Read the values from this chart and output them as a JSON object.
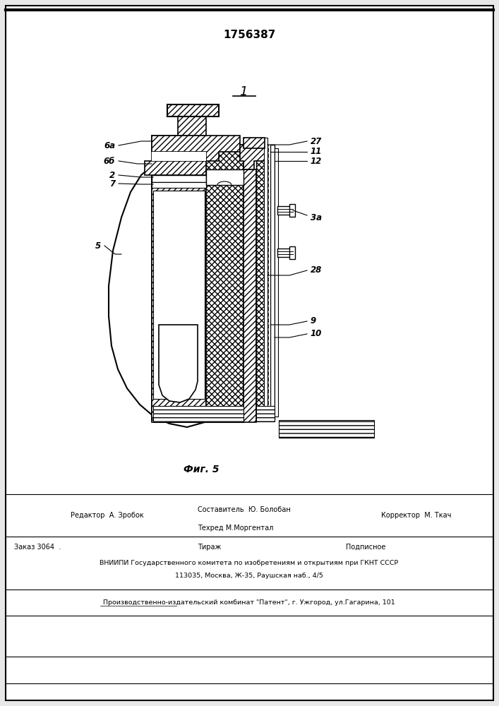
{
  "patent_number": "1756387",
  "figure_label": "Фиг. 5",
  "figure_number": "1",
  "page_color": "#e8e8e8",
  "editor_line": "Редактор  А. Зробок",
  "composer_line": "Составитель  Ю. Болобан",
  "techred_line": "Техред М.Моргентал",
  "corrector_line": "Корректор  М. Ткач",
  "order_line": "Заказ 3064  .",
  "tirage_line": "Тираж",
  "podpisnoe_line": "Подписное",
  "vniip_line1": "ВНИИПИ Государственного комитета по изобретениям и открытиям при ГКНТ СССР",
  "vniip_line2": "113035, Москва, Ж-35, Раушская наб., 4/5",
  "factory_line": "Производственно-издательский комбинат \"Патент\", г. Ужгород, ул.Гагарина, 101"
}
